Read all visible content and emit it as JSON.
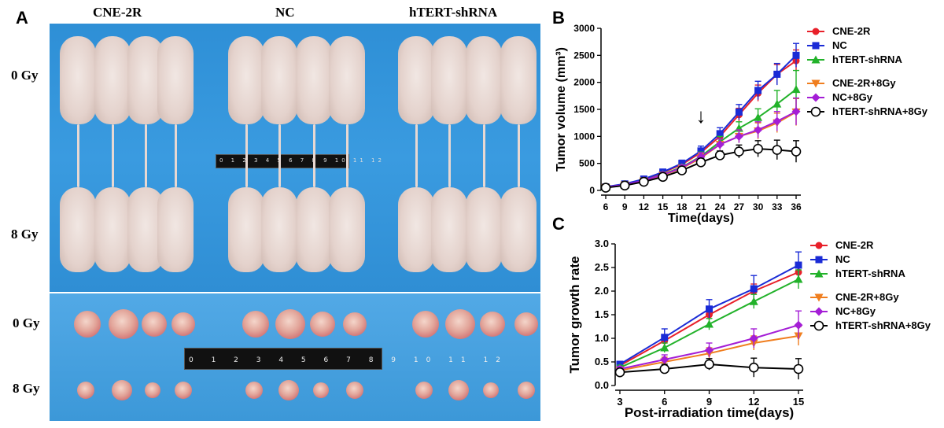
{
  "panel_a": {
    "label": "A",
    "groups": [
      "CNE-2R",
      "NC",
      "hTERT-shRNA"
    ],
    "doses": [
      "0 Gy",
      "8 Gy"
    ],
    "tumor_doses": [
      "0 Gy",
      "8 Gy"
    ],
    "ruler_top_ticks": "0 1 2 3 4 5 6 7 8 9 10 11 12",
    "ruler_bot_ticks": "0 1 2 3 4 5 6 7 8 9 10 11 12"
  },
  "chart_data": [
    {
      "panel": "B",
      "type": "line",
      "xlabel": "Time(days)",
      "ylabel": "Tumor volume (mm³)",
      "x": [
        6,
        9,
        12,
        15,
        18,
        21,
        24,
        27,
        30,
        33,
        36
      ],
      "xlim": [
        6,
        36
      ],
      "ylim": [
        0,
        3000
      ],
      "yticks": [
        0,
        500,
        1000,
        1500,
        2000,
        2500,
        3000
      ],
      "annotation": "↓",
      "annotation_x": 21,
      "series": [
        {
          "name": "CNE-2R",
          "color": "#e8202a",
          "marker": "circle-filled",
          "values": [
            60,
            110,
            200,
            330,
            480,
            700,
            1000,
            1400,
            1800,
            2150,
            2400
          ],
          "err": [
            0,
            20,
            30,
            40,
            60,
            80,
            100,
            120,
            150,
            180,
            200
          ]
        },
        {
          "name": "NC",
          "color": "#1a2bd6",
          "marker": "square",
          "values": [
            65,
            120,
            210,
            340,
            500,
            730,
            1050,
            1450,
            1850,
            2150,
            2500
          ],
          "err": [
            0,
            20,
            30,
            40,
            60,
            90,
            110,
            140,
            170,
            200,
            220
          ]
        },
        {
          "name": "hTERT-shRNA",
          "color": "#22b22a",
          "marker": "triangle-up",
          "values": [
            55,
            100,
            180,
            300,
            430,
            630,
            900,
            1150,
            1350,
            1600,
            1870
          ],
          "err": [
            0,
            20,
            30,
            40,
            50,
            80,
            100,
            120,
            160,
            250,
            350
          ]
        },
        {
          "name": "CNE-2R+8Gy",
          "color": "#f07e1f",
          "marker": "triangle-down",
          "values": [
            55,
            100,
            175,
            280,
            410,
            600,
            850,
            1000,
            1100,
            1250,
            1450
          ],
          "err": [
            0,
            20,
            30,
            40,
            50,
            80,
            100,
            120,
            150,
            180,
            250
          ]
        },
        {
          "name": "NC+8Gy",
          "color": "#a41ed6",
          "marker": "diamond",
          "values": [
            58,
            105,
            185,
            290,
            420,
            620,
            850,
            1000,
            1120,
            1280,
            1460
          ],
          "err": [
            0,
            20,
            30,
            40,
            50,
            80,
            100,
            120,
            150,
            180,
            250
          ]
        },
        {
          "name": "hTERT-shRNA+8Gy",
          "color": "#000000",
          "marker": "circle-open",
          "values": [
            50,
            90,
            160,
            250,
            370,
            520,
            650,
            720,
            770,
            750,
            720
          ],
          "err": [
            0,
            20,
            30,
            40,
            50,
            70,
            80,
            120,
            150,
            180,
            200
          ]
        }
      ]
    },
    {
      "panel": "C",
      "type": "line",
      "xlabel": "Post-irradiation time(days)",
      "ylabel": "Tumor growth rate",
      "x": [
        3,
        6,
        9,
        12,
        15
      ],
      "xlim": [
        3,
        15
      ],
      "ylim": [
        0,
        3.0
      ],
      "yticks": [
        0.0,
        0.5,
        1.0,
        1.5,
        2.0,
        2.5,
        3.0
      ],
      "series": [
        {
          "name": "CNE-2R",
          "color": "#e8202a",
          "marker": "circle-filled",
          "values": [
            0.42,
            0.95,
            1.5,
            2.0,
            2.4
          ],
          "err": [
            0.05,
            0.1,
            0.12,
            0.15,
            0.2
          ]
        },
        {
          "name": "NC",
          "color": "#1a2bd6",
          "marker": "square",
          "values": [
            0.45,
            1.02,
            1.62,
            2.05,
            2.55
          ],
          "err": [
            0.05,
            0.18,
            0.2,
            0.28,
            0.28
          ]
        },
        {
          "name": "hTERT-shRNA",
          "color": "#22b22a",
          "marker": "triangle-up",
          "values": [
            0.38,
            0.8,
            1.3,
            1.78,
            2.25
          ],
          "err": [
            0.05,
            0.1,
            0.12,
            0.15,
            0.2
          ]
        },
        {
          "name": "CNE-2R+8Gy",
          "color": "#f07e1f",
          "marker": "triangle-down",
          "values": [
            0.32,
            0.5,
            0.68,
            0.9,
            1.05
          ],
          "err": [
            0.05,
            0.1,
            0.12,
            0.15,
            0.2
          ]
        },
        {
          "name": "NC+8Gy",
          "color": "#a41ed6",
          "marker": "diamond",
          "values": [
            0.35,
            0.55,
            0.75,
            1.0,
            1.28
          ],
          "err": [
            0.05,
            0.1,
            0.15,
            0.2,
            0.3
          ]
        },
        {
          "name": "hTERT-shRNA+8Gy",
          "color": "#000000",
          "marker": "circle-open",
          "values": [
            0.28,
            0.35,
            0.45,
            0.38,
            0.35
          ],
          "err": [
            0.05,
            0.1,
            0.12,
            0.2,
            0.22
          ]
        }
      ]
    }
  ]
}
